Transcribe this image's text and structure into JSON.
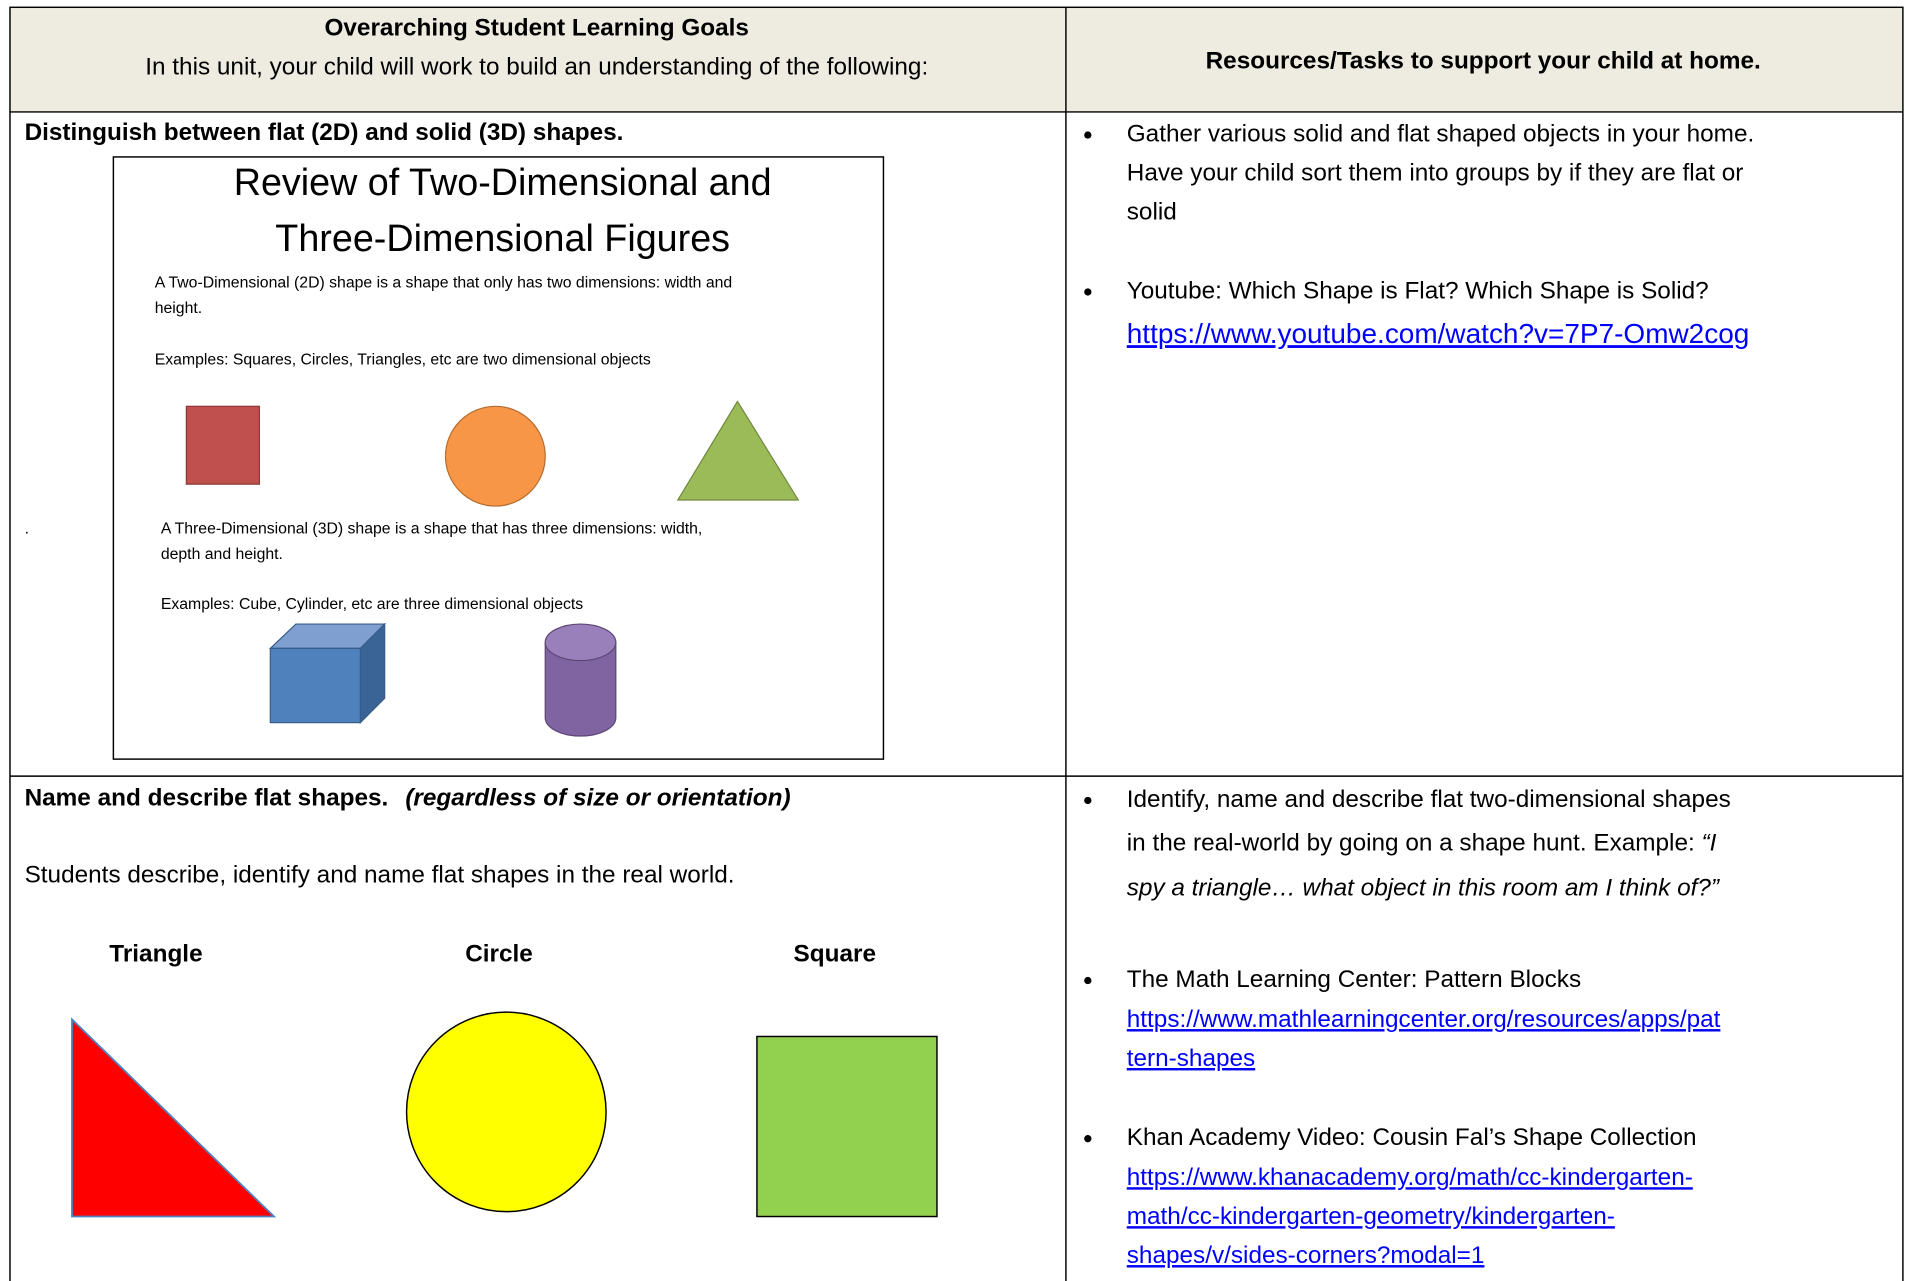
{
  "header": {
    "left_title": "Overarching Student Learning Goals",
    "left_subtitle": "In this unit, your child will work to build an understanding of the following:",
    "right_title": "Resources/Tasks to support your child at home."
  },
  "rows": [
    {
      "goal": "Distinguish between flat (2D) and solid (3D) shapes.",
      "slide": {
        "title_lines": [
          "Review of Two-Dimensional and",
          "Three-Dimensional Figures"
        ],
        "two_d_definition_lines": [
          "A  Two-Dimensional (2D) shape is a shape that only has two dimensions: width and",
          "height."
        ],
        "two_d_examples": "Examples: Squares, Circles, Triangles, etc are two dimensional objects",
        "bullet": ".",
        "three_d_definition_lines": [
          "A  Three-Dimensional (3D) shape is a shape that has three dimensions: width,",
          "depth and height."
        ],
        "three_d_examples": "Examples: Cube, Cylinder, etc are three dimensional objects"
      },
      "resources": [
        {
          "text_lines": [
            "Gather various solid and flat shaped objects in your home.",
            "Have your child sort them into groups by if they are flat or",
            "solid"
          ]
        },
        {
          "text_lines": [
            "Youtube:  Which Shape is Flat? Which Shape is Solid?"
          ],
          "link_lines": [
            "https://www.youtube.com/watch?v=7P7-Omw2cog"
          ]
        }
      ]
    },
    {
      "goal": "Name and describe flat shapes.",
      "goal_note": "(regardless of size or orientation)",
      "description": "Students describe, identify and name flat shapes in the real world.",
      "shape_labels": [
        "Triangle",
        "Circle",
        "Square"
      ],
      "resources": [
        {
          "text_lines": [
            "Identify, name and describe flat two-dimensional shapes",
            "in the real-world by going on a shape hunt.  Example: "
          ],
          "quote_lines": [
            "“I",
            "spy a triangle… what object in this room am I think of?”"
          ]
        },
        {
          "text_lines": [
            "The Math Learning Center: Pattern Blocks"
          ],
          "link_lines": [
            "https://www.mathlearningcenter.org/resources/apps/pat",
            "tern-shapes"
          ]
        },
        {
          "text_lines": [
            "Khan Academy Video: Cousin Fal’s Shape Collection"
          ],
          "link_lines": [
            "https://www.khanacademy.org/math/cc-kindergarten-",
            "math/cc-kindergarten-geometry/kindergarten-",
            "shapes/v/sides-corners?modal=1"
          ]
        }
      ]
    }
  ]
}
